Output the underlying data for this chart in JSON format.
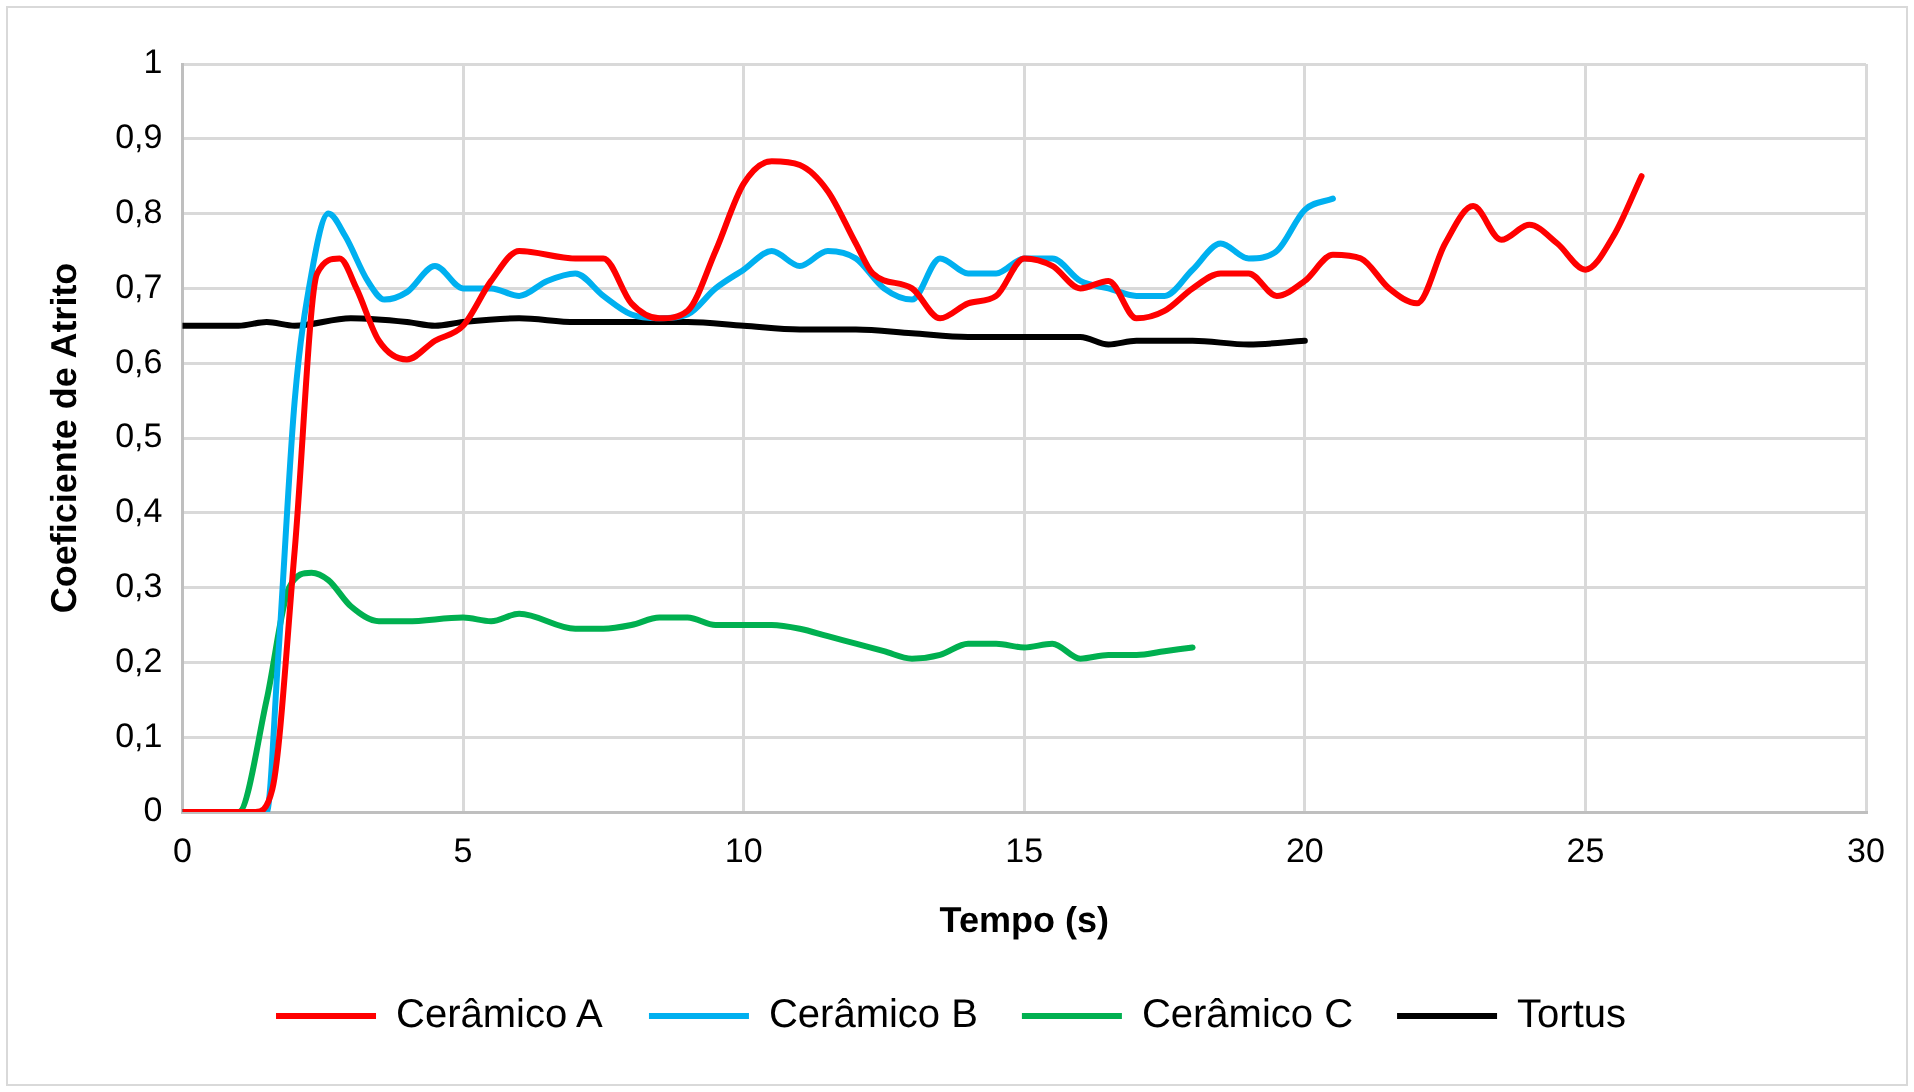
{
  "chart_data": {
    "type": "line",
    "xlabel": "Tempo (s)",
    "ylabel": "Coeficiente de Atrito",
    "xlim": [
      0,
      30
    ],
    "xticks": [
      0,
      5,
      10,
      15,
      20,
      25,
      30
    ],
    "ylim": [
      0,
      1
    ],
    "yticks": [
      0,
      {
        "value": 0.1,
        "label": "0,1"
      },
      {
        "value": 0.2,
        "label": "0,2"
      },
      {
        "value": 0.3,
        "label": "0,3"
      },
      {
        "value": 0.4,
        "label": "0,4"
      },
      {
        "value": 0.5,
        "label": "0,5"
      },
      {
        "value": 0.6,
        "label": "0,6"
      },
      {
        "value": 0.7,
        "label": "0,7"
      },
      {
        "value": 0.8,
        "label": "0,8"
      },
      {
        "value": 0.9,
        "label": "0,9"
      },
      1
    ],
    "grid": true,
    "legend": "bottom",
    "marker": "none",
    "line_style": "solid",
    "series": [
      {
        "name": "Cerâmico A",
        "color": "#ff0000",
        "x": [
          0,
          1,
          1.3,
          1.6,
          2,
          2.4,
          2.8,
          3.1,
          3.5,
          4,
          4.5,
          5,
          5.5,
          6,
          7,
          7.5,
          8,
          8.5,
          9,
          9.5,
          10,
          10.5,
          11,
          11.5,
          12,
          12.3,
          13,
          13.5,
          14,
          14.5,
          15,
          15.5,
          16,
          16.5,
          17,
          17.5,
          18,
          18.5,
          19,
          19.5,
          20,
          20.5,
          21,
          21.5,
          22,
          22.5,
          23,
          23.5,
          24,
          24.5,
          25,
          25.5,
          26
        ],
        "values": [
          0,
          0,
          0,
          0.03,
          0.35,
          0.72,
          0.74,
          0.7,
          0.63,
          0.605,
          0.63,
          0.65,
          0.71,
          0.75,
          0.74,
          0.74,
          0.68,
          0.66,
          0.67,
          0.75,
          0.84,
          0.87,
          0.865,
          0.83,
          0.76,
          0.72,
          0.7,
          0.66,
          0.68,
          0.69,
          0.74,
          0.73,
          0.7,
          0.71,
          0.66,
          0.67,
          0.7,
          0.72,
          0.72,
          0.69,
          0.71,
          0.745,
          0.74,
          0.7,
          0.68,
          0.76,
          0.81,
          0.765,
          0.785,
          0.76,
          0.725,
          0.77,
          0.85
        ]
      },
      {
        "name": "Cerâmico B",
        "color": "#00b0f0",
        "x": [
          0,
          1.5,
          1.7,
          2,
          2.3,
          2.6,
          2.9,
          3.3,
          3.6,
          4,
          4.5,
          5,
          5.5,
          6,
          6.5,
          7,
          7.5,
          8,
          8.5,
          9,
          9.5,
          10,
          10.5,
          11,
          11.5,
          12,
          12.5,
          13,
          13.5,
          14,
          14.5,
          15,
          15.5,
          16,
          16.5,
          17,
          17.5,
          18,
          18.5,
          19,
          19.5,
          20,
          20.5
        ],
        "values": [
          0,
          0,
          0.2,
          0.55,
          0.72,
          0.8,
          0.77,
          0.71,
          0.685,
          0.695,
          0.73,
          0.7,
          0.7,
          0.69,
          0.71,
          0.72,
          0.69,
          0.665,
          0.66,
          0.665,
          0.7,
          0.725,
          0.75,
          0.73,
          0.75,
          0.74,
          0.7,
          0.685,
          0.74,
          0.72,
          0.72,
          0.74,
          0.74,
          0.71,
          0.7,
          0.69,
          0.69,
          0.725,
          0.76,
          0.74,
          0.75,
          0.805,
          0.82
        ]
      },
      {
        "name": "Cerâmico C",
        "color": "#00b050",
        "x": [
          0,
          1,
          1.5,
          1.9,
          2.3,
          2.6,
          3,
          3.5,
          4,
          5,
          5.5,
          6,
          7,
          7.5,
          8,
          8.5,
          9,
          9.5,
          10,
          10.5,
          11,
          11.5,
          12,
          12.5,
          13,
          13.5,
          14,
          14.5,
          15,
          15.5,
          16,
          16.5,
          17,
          17.5,
          18
        ],
        "values": [
          0,
          0,
          0.15,
          0.3,
          0.32,
          0.31,
          0.275,
          0.255,
          0.255,
          0.26,
          0.255,
          0.265,
          0.245,
          0.245,
          0.25,
          0.26,
          0.26,
          0.25,
          0.25,
          0.25,
          0.245,
          0.235,
          0.225,
          0.215,
          0.205,
          0.21,
          0.225,
          0.225,
          0.22,
          0.225,
          0.205,
          0.21,
          0.21,
          0.215,
          0.22
        ]
      },
      {
        "name": "Tortus",
        "color": "#000000",
        "x": [
          0,
          1,
          1.5,
          2,
          3,
          4,
          4.5,
          5,
          6,
          7,
          8,
          9,
          10,
          11,
          12,
          13,
          14,
          15,
          16,
          16.5,
          17,
          18,
          19,
          20
        ],
        "values": [
          0.65,
          0.65,
          0.655,
          0.65,
          0.66,
          0.655,
          0.65,
          0.655,
          0.66,
          0.655,
          0.655,
          0.655,
          0.65,
          0.645,
          0.645,
          0.64,
          0.635,
          0.635,
          0.635,
          0.625,
          0.63,
          0.63,
          0.625,
          0.63
        ]
      }
    ]
  }
}
